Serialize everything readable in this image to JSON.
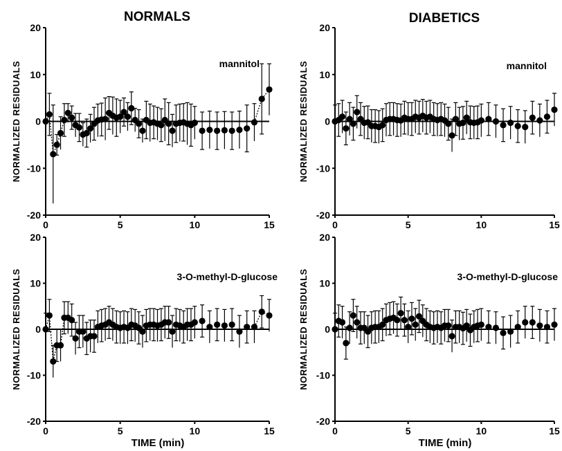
{
  "figure": {
    "columns": [
      "NORMALS",
      "DIABETICS"
    ]
  },
  "chart_data": [
    {
      "type": "scatter",
      "column": "NORMALS",
      "label": "mannitol",
      "ylabel": "NORMALIZED  RESIDUALS",
      "xlabel": "",
      "xlim": [
        0,
        15
      ],
      "ylim": [
        -20,
        20
      ],
      "xticks": [
        0,
        5,
        10,
        15
      ],
      "yticks": [
        -20,
        -10,
        0,
        10,
        20
      ],
      "grid": false,
      "connect_first_points": 6,
      "connect_last_points": 3,
      "x": [
        0,
        0.25,
        0.5,
        0.75,
        1.0,
        1.25,
        1.5,
        1.75,
        2.0,
        2.25,
        2.5,
        2.75,
        3.0,
        3.25,
        3.5,
        3.75,
        4.0,
        4.25,
        4.5,
        4.75,
        5.0,
        5.25,
        5.5,
        5.75,
        6.0,
        6.25,
        6.5,
        6.75,
        7.0,
        7.25,
        7.5,
        7.75,
        8.0,
        8.25,
        8.5,
        8.75,
        9.0,
        9.25,
        9.5,
        9.75,
        10.0,
        10.5,
        11.0,
        11.5,
        12.0,
        12.5,
        13.0,
        13.5,
        14.0,
        14.5,
        15.0
      ],
      "y": [
        0,
        1.5,
        -7,
        -5,
        -2.5,
        0.3,
        1.8,
        0.8,
        -0.8,
        -1.3,
        -2.8,
        -2.5,
        -1.5,
        -0.5,
        0.2,
        0.4,
        0.5,
        1.8,
        1.2,
        0.8,
        1.0,
        2.0,
        1.0,
        2.8,
        0.3,
        -0.5,
        -2.0,
        0.3,
        -0.3,
        -0.2,
        -0.5,
        -0.8,
        0.3,
        -0.5,
        -2.0,
        -0.5,
        -0.3,
        -0.2,
        -0.5,
        -0.8,
        -0.3,
        -2.0,
        -1.8,
        -2.0,
        -1.9,
        -2.0,
        -1.8,
        -1.5,
        -0.2,
        4.8,
        6.8
      ],
      "err": [
        0,
        4.5,
        10.5,
        2.2,
        3.5,
        3.5,
        2.0,
        2.5,
        2.5,
        3.0,
        2.5,
        3.0,
        3.0,
        3.5,
        3.5,
        3.5,
        4.5,
        3.5,
        4.0,
        4.0,
        3.5,
        3.0,
        3.0,
        3.5,
        2.5,
        3.0,
        2.5,
        4.0,
        4.0,
        3.5,
        3.5,
        3.5,
        4.5,
        4.5,
        3.5,
        4.0,
        4.0,
        4.0,
        4.5,
        4.5,
        3.5,
        4.0,
        4.0,
        4.0,
        4.0,
        4.0,
        4.0,
        5.0,
        4.0,
        7.5,
        5.5
      ]
    },
    {
      "type": "scatter",
      "column": "DIABETICS",
      "label": "mannitol",
      "ylabel": "NORMALIZED  RESIDUALS",
      "xlabel": "",
      "xlim": [
        0,
        15
      ],
      "ylim": [
        -20,
        20
      ],
      "xticks": [
        0,
        5,
        10,
        15
      ],
      "yticks": [
        -20,
        -10,
        0,
        10,
        20
      ],
      "grid": false,
      "connect_first_points": 0,
      "connect_last_points": 0,
      "x": [
        0,
        0.25,
        0.5,
        0.75,
        1.0,
        1.25,
        1.5,
        1.75,
        2.0,
        2.25,
        2.5,
        2.75,
        3.0,
        3.25,
        3.5,
        3.75,
        4.0,
        4.25,
        4.5,
        4.75,
        5.0,
        5.25,
        5.5,
        5.75,
        6.0,
        6.25,
        6.5,
        6.75,
        7.0,
        7.25,
        7.5,
        7.75,
        8.0,
        8.25,
        8.5,
        8.75,
        9.0,
        9.25,
        9.5,
        9.75,
        10.0,
        10.5,
        11.0,
        11.5,
        12.0,
        12.5,
        13.0,
        13.5,
        14.0,
        14.5,
        15.0
      ],
      "y": [
        0,
        0.3,
        1.0,
        -1.5,
        0.5,
        -0.5,
        2.0,
        0.5,
        -0.3,
        -0.2,
        -1.0,
        -1.0,
        -1.2,
        -0.8,
        0.3,
        0.5,
        0.5,
        0.3,
        0.2,
        0.8,
        0.5,
        0.5,
        1.0,
        0.8,
        1.2,
        0.8,
        1.0,
        0.5,
        0.3,
        0.5,
        0.2,
        -0.5,
        -3.0,
        0.5,
        -0.5,
        -0.3,
        0.8,
        -0.2,
        -0.3,
        -0.2,
        0.2,
        0.5,
        0.0,
        -0.8,
        -0.3,
        -1.0,
        -1.2,
        0.8,
        0.2,
        1.0,
        2.5
      ]
    },
    {
      "type": "scatter",
      "column": "NORMALS",
      "label": "3-O-methyl-D-glucose",
      "ylabel": "NORMALIZED  RESIDUALS",
      "xlabel": "TIME  (min)",
      "xlim": [
        0,
        15
      ],
      "ylim": [
        -20,
        20
      ],
      "xticks": [
        0,
        5,
        10,
        15
      ],
      "yticks": [
        -20,
        -10,
        0,
        10,
        20
      ],
      "grid": false,
      "connect_first_points": 6,
      "connect_last_points": 3,
      "x": [
        0,
        0.25,
        0.5,
        0.75,
        1.0,
        1.25,
        1.5,
        1.75,
        2.0,
        2.25,
        2.5,
        2.75,
        3.0,
        3.25,
        3.5,
        3.75,
        4.0,
        4.25,
        4.5,
        4.75,
        5.0,
        5.25,
        5.5,
        5.75,
        6.0,
        6.25,
        6.5,
        6.75,
        7.0,
        7.25,
        7.5,
        7.75,
        8.0,
        8.25,
        8.5,
        8.75,
        9.0,
        9.25,
        9.5,
        9.75,
        10.0,
        10.5,
        11.0,
        11.5,
        12.0,
        12.5,
        13.0,
        13.5,
        14.0,
        14.5,
        15.0
      ],
      "y": [
        0,
        3.0,
        -7.0,
        -3.5,
        -3.5,
        2.5,
        2.5,
        2.0,
        -2.0,
        -0.5,
        -0.5,
        -2.0,
        -1.5,
        -1.5,
        0.5,
        0.8,
        1.0,
        1.5,
        1.0,
        0.5,
        0.3,
        0.5,
        0.3,
        1.0,
        0.8,
        0.3,
        -0.5,
        0.8,
        1.0,
        1.0,
        0.8,
        1.0,
        1.5,
        1.5,
        -0.5,
        1.0,
        0.8,
        0.5,
        1.0,
        1.0,
        1.5,
        1.8,
        0.5,
        1.0,
        0.8,
        1.0,
        -0.5,
        0.5,
        0.5,
        3.8,
        3.0
      ]
    },
    {
      "type": "scatter",
      "column": "DIABETICS",
      "label": "3-O-methyl-D-glucose",
      "ylabel": "NORMALIZED  RESIDUALS",
      "xlabel": "TIME  (min)",
      "xlim": [
        0,
        15
      ],
      "ylim": [
        -20,
        20
      ],
      "xticks": [
        0,
        5,
        10,
        15
      ],
      "yticks": [
        -20,
        -10,
        0,
        10,
        20
      ],
      "grid": false,
      "connect_first_points": 0,
      "connect_last_points": 0,
      "x": [
        0,
        0.25,
        0.5,
        0.75,
        1.0,
        1.25,
        1.5,
        1.75,
        2.0,
        2.25,
        2.5,
        2.75,
        3.0,
        3.25,
        3.5,
        3.75,
        4.0,
        4.25,
        4.5,
        4.75,
        5.0,
        5.25,
        5.5,
        5.75,
        6.0,
        6.25,
        6.5,
        6.75,
        7.0,
        7.25,
        7.5,
        7.75,
        8.0,
        8.25,
        8.5,
        8.75,
        9.0,
        9.25,
        9.5,
        9.75,
        10.0,
        10.5,
        11.0,
        11.5,
        12.0,
        12.5,
        13.0,
        13.5,
        14.0,
        14.5,
        15.0
      ],
      "y": [
        0,
        1.8,
        1.5,
        -3.0,
        0.3,
        3.0,
        1.5,
        0.3,
        0.3,
        -0.5,
        0.3,
        0.5,
        0.5,
        1.0,
        2.0,
        2.3,
        2.5,
        2.0,
        3.5,
        2.0,
        0.5,
        2.3,
        1.0,
        2.8,
        1.8,
        1.0,
        0.5,
        0.3,
        0.5,
        0.3,
        0.8,
        0.8,
        -1.5,
        0.5,
        0.5,
        0.2,
        0.8,
        -0.2,
        0.5,
        0.8,
        1.0,
        0.5,
        0.3,
        -0.8,
        -0.5,
        0.5,
        1.5,
        1.5,
        0.8,
        0.5,
        1.0
      ]
    }
  ]
}
